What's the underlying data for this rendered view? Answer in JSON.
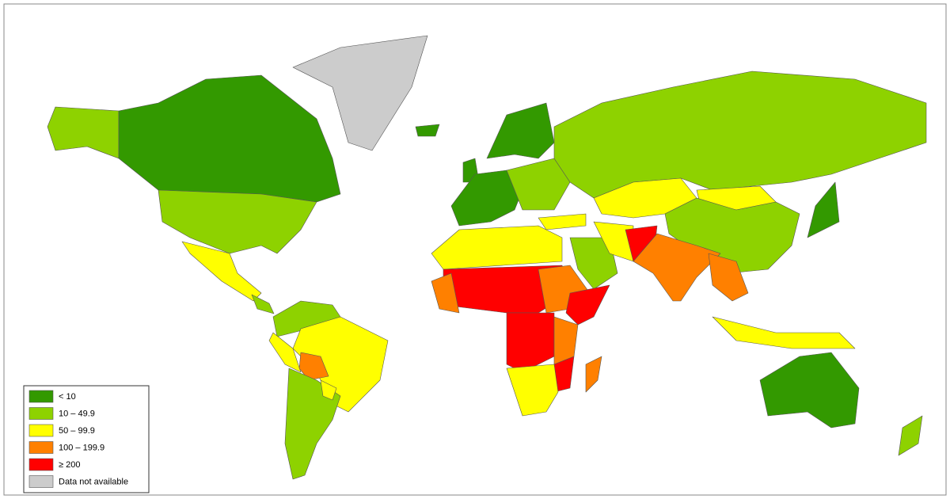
{
  "legend": {
    "items": [
      {
        "label": "< 10",
        "color": "#339900"
      },
      {
        "label": "10 – 49.9",
        "color": "#8ed200"
      },
      {
        "label": "50 – 99.9",
        "color": "#ffff00"
      },
      {
        "label": "100 – 199.9",
        "color": "#ff8000"
      },
      {
        "label": "≥ 200",
        "color": "#ff0000"
      },
      {
        "label": "Data not available",
        "color": "#cccccc"
      }
    ]
  }
}
